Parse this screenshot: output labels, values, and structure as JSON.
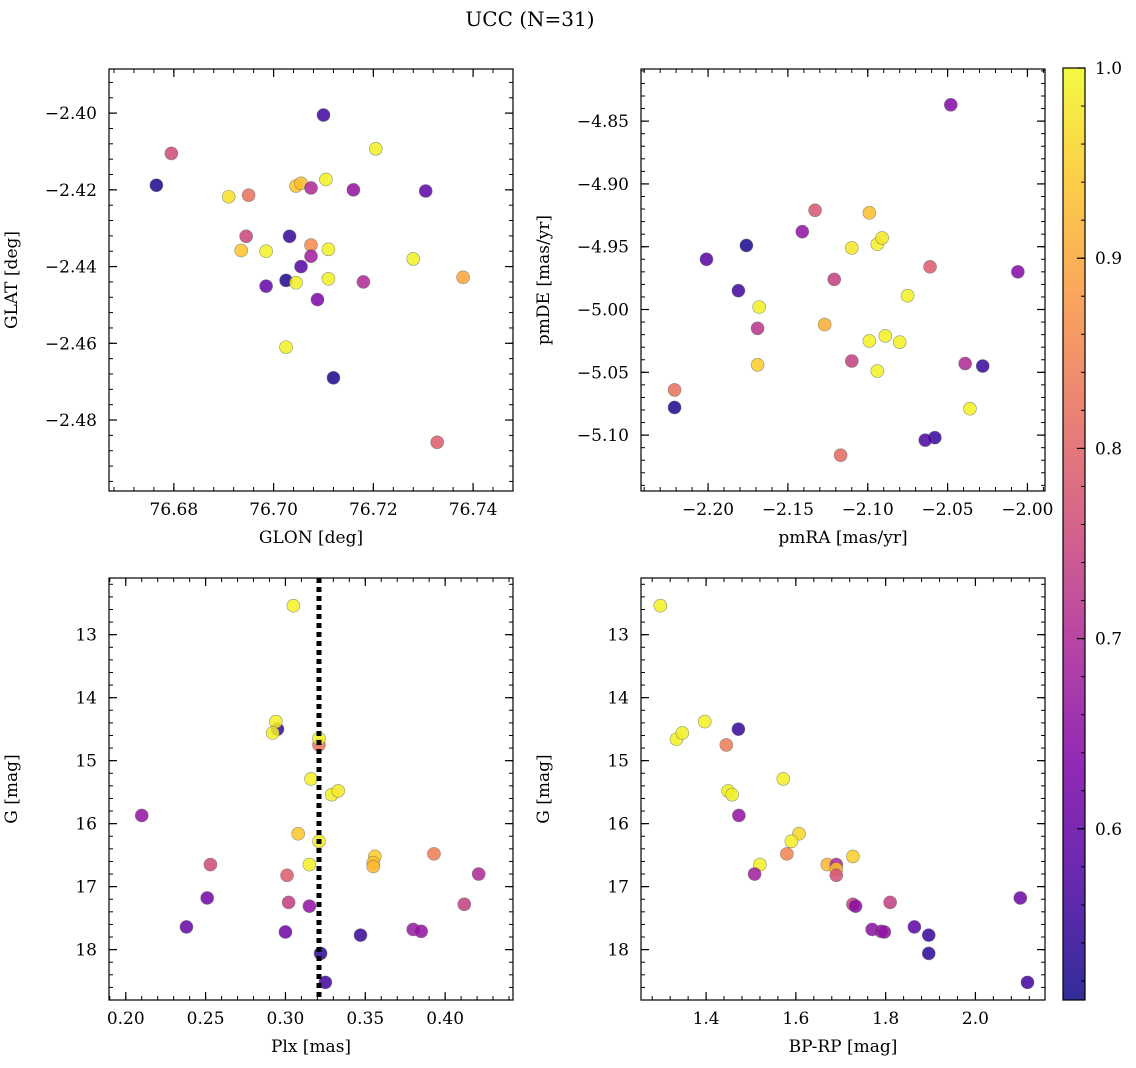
{
  "figure": {
    "suptitle": "UCC (N=31)",
    "colormap": "plasma",
    "colorbar": {
      "min": 0.51,
      "max": 1.0,
      "ticks": [
        0.6,
        0.7,
        0.8,
        0.9,
        1.0
      ],
      "tick_labels": [
        "0.6",
        "0.7",
        "0.8",
        "0.9",
        "1.0"
      ]
    }
  },
  "chart_data": [
    {
      "id": "glon-glat",
      "type": "scatter",
      "xlabel": "GLON [deg]",
      "ylabel": "GLAT [deg]",
      "xlim": [
        76.667,
        76.748
      ],
      "ylim": [
        -2.4985,
        -2.3885
      ],
      "y_inverted": false,
      "xticks": [
        76.68,
        76.7,
        76.72,
        76.74
      ],
      "xtick_labels": [
        "76.68",
        "76.70",
        "76.72",
        "76.74"
      ],
      "yticks": [
        -2.4,
        -2.42,
        -2.44,
        -2.46,
        -2.48
      ],
      "ytick_labels": [
        "−2.40",
        "−2.42",
        "−2.44",
        "−2.46",
        "−2.48"
      ],
      "xminor": 0.004,
      "yminor": 0.004,
      "points": [
        {
          "x": 76.71,
          "y": -2.4005,
          "c": 0.56
        },
        {
          "x": 76.6795,
          "y": -2.4105,
          "c": 0.76
        },
        {
          "x": 76.6765,
          "y": -2.4188,
          "c": 0.52
        },
        {
          "x": 76.691,
          "y": -2.4218,
          "c": 0.97
        },
        {
          "x": 76.695,
          "y": -2.4214,
          "c": 0.82
        },
        {
          "x": 76.7045,
          "y": -2.419,
          "c": 0.94
        },
        {
          "x": 76.7055,
          "y": -2.4183,
          "c": 0.93
        },
        {
          "x": 76.7075,
          "y": -2.4195,
          "c": 0.7
        },
        {
          "x": 76.7105,
          "y": -2.4173,
          "c": 0.99
        },
        {
          "x": 76.716,
          "y": -2.42,
          "c": 0.66
        },
        {
          "x": 76.7205,
          "y": -2.4093,
          "c": 0.99
        },
        {
          "x": 76.7305,
          "y": -2.4203,
          "c": 0.59
        },
        {
          "x": 76.6945,
          "y": -2.4321,
          "c": 0.75
        },
        {
          "x": 76.7032,
          "y": -2.4321,
          "c": 0.55
        },
        {
          "x": 76.6935,
          "y": -2.4358,
          "c": 0.94
        },
        {
          "x": 76.6985,
          "y": -2.436,
          "c": 0.99
        },
        {
          "x": 76.7075,
          "y": -2.4344,
          "c": 0.86
        },
        {
          "x": 76.711,
          "y": -2.4355,
          "c": 0.99
        },
        {
          "x": 76.7075,
          "y": -2.4373,
          "c": 0.68
        },
        {
          "x": 76.7055,
          "y": -2.44,
          "c": 0.58
        },
        {
          "x": 76.728,
          "y": -2.438,
          "c": 0.99
        },
        {
          "x": 76.6985,
          "y": -2.4451,
          "c": 0.6
        },
        {
          "x": 76.7025,
          "y": -2.4436,
          "c": 0.53
        },
        {
          "x": 76.7045,
          "y": -2.4442,
          "c": 0.99
        },
        {
          "x": 76.711,
          "y": -2.4432,
          "c": 0.99
        },
        {
          "x": 76.718,
          "y": -2.444,
          "c": 0.7
        },
        {
          "x": 76.738,
          "y": -2.4428,
          "c": 0.9
        },
        {
          "x": 76.7088,
          "y": -2.4486,
          "c": 0.63
        },
        {
          "x": 76.7025,
          "y": -2.461,
          "c": 0.99
        },
        {
          "x": 76.712,
          "y": -2.469,
          "c": 0.52
        },
        {
          "x": 76.7328,
          "y": -2.4858,
          "c": 0.79
        }
      ]
    },
    {
      "id": "pm",
      "type": "scatter",
      "xlabel": "pmRA [mas/yr]",
      "ylabel": "pmDE [mas/yr]",
      "xlim": [
        -2.242,
        -1.989
      ],
      "ylim": [
        -5.1445,
        -4.8085
      ],
      "y_inverted": false,
      "xticks": [
        -2.2,
        -2.15,
        -2.1,
        -2.05,
        -2.0
      ],
      "xtick_labels": [
        "−2.20",
        "−2.15",
        "−2.10",
        "−2.05",
        "−2.00"
      ],
      "yticks": [
        -4.85,
        -4.9,
        -4.95,
        -5.0,
        -5.05,
        -5.1
      ],
      "ytick_labels": [
        "−4.85",
        "−4.90",
        "−4.95",
        "−5.00",
        "−5.05",
        "−5.10"
      ],
      "xminor": 0.01,
      "yminor": 0.01,
      "points": [
        {
          "x": -2.048,
          "y": -4.837,
          "c": 0.64
        },
        {
          "x": -2.133,
          "y": -4.921,
          "c": 0.78
        },
        {
          "x": -2.099,
          "y": -4.923,
          "c": 0.93
        },
        {
          "x": -2.141,
          "y": -4.938,
          "c": 0.66
        },
        {
          "x": -2.176,
          "y": -4.949,
          "c": 0.52
        },
        {
          "x": -2.11,
          "y": -4.951,
          "c": 0.98
        },
        {
          "x": -2.094,
          "y": -4.948,
          "c": 0.99
        },
        {
          "x": -2.091,
          "y": -4.943,
          "c": 0.98
        },
        {
          "x": -2.201,
          "y": -4.96,
          "c": 0.58
        },
        {
          "x": -2.061,
          "y": -4.966,
          "c": 0.79
        },
        {
          "x": -2.006,
          "y": -4.97,
          "c": 0.64
        },
        {
          "x": -2.121,
          "y": -4.976,
          "c": 0.74
        },
        {
          "x": -2.181,
          "y": -4.985,
          "c": 0.56
        },
        {
          "x": -2.075,
          "y": -4.989,
          "c": 0.99
        },
        {
          "x": -2.168,
          "y": -4.998,
          "c": 0.99
        },
        {
          "x": -2.127,
          "y": -5.012,
          "c": 0.91
        },
        {
          "x": -2.169,
          "y": -5.015,
          "c": 0.72
        },
        {
          "x": -2.089,
          "y": -5.021,
          "c": 0.99
        },
        {
          "x": -2.099,
          "y": -5.025,
          "c": 0.99
        },
        {
          "x": -2.08,
          "y": -5.026,
          "c": 0.99
        },
        {
          "x": -2.11,
          "y": -5.041,
          "c": 0.74
        },
        {
          "x": -2.039,
          "y": -5.043,
          "c": 0.7
        },
        {
          "x": -2.169,
          "y": -5.044,
          "c": 0.95
        },
        {
          "x": -2.028,
          "y": -5.045,
          "c": 0.55
        },
        {
          "x": -2.094,
          "y": -5.049,
          "c": 0.99
        },
        {
          "x": -2.221,
          "y": -5.064,
          "c": 0.82
        },
        {
          "x": -2.221,
          "y": -5.078,
          "c": 0.52
        },
        {
          "x": -2.036,
          "y": -5.079,
          "c": 0.99
        },
        {
          "x": -2.058,
          "y": -5.102,
          "c": 0.55
        },
        {
          "x": -2.064,
          "y": -5.104,
          "c": 0.57
        },
        {
          "x": -2.117,
          "y": -5.116,
          "c": 0.81
        }
      ]
    },
    {
      "id": "plx-g",
      "type": "scatter",
      "xlabel": "Plx [mas]",
      "ylabel": "G [mag]",
      "xlim": [
        0.1895,
        0.4425
      ],
      "ylim": [
        12.1,
        18.8
      ],
      "y_inverted": true,
      "xticks": [
        0.2,
        0.25,
        0.3,
        0.35,
        0.4
      ],
      "xtick_labels": [
        "0.20",
        "0.25",
        "0.30",
        "0.35",
        "0.40"
      ],
      "yticks": [
        13,
        14,
        15,
        16,
        17,
        18
      ],
      "ytick_labels": [
        "13",
        "14",
        "15",
        "16",
        "17",
        "18"
      ],
      "xminor": 0.01,
      "yminor": 0.2,
      "vline": 0.321,
      "points": [
        {
          "x": 0.305,
          "y": 12.54,
          "c": 0.99
        },
        {
          "x": 0.295,
          "y": 14.5,
          "c": 0.55
        },
        {
          "x": 0.294,
          "y": 14.38,
          "c": 0.99
        },
        {
          "x": 0.292,
          "y": 14.56,
          "c": 0.99
        },
        {
          "x": 0.321,
          "y": 14.75,
          "c": 0.83
        },
        {
          "x": 0.321,
          "y": 14.65,
          "c": 0.99
        },
        {
          "x": 0.316,
          "y": 15.29,
          "c": 0.99
        },
        {
          "x": 0.329,
          "y": 15.54,
          "c": 0.99
        },
        {
          "x": 0.333,
          "y": 15.48,
          "c": 0.98
        },
        {
          "x": 0.21,
          "y": 15.87,
          "c": 0.66
        },
        {
          "x": 0.308,
          "y": 16.16,
          "c": 0.94
        },
        {
          "x": 0.321,
          "y": 16.28,
          "c": 0.99
        },
        {
          "x": 0.356,
          "y": 16.52,
          "c": 0.95
        },
        {
          "x": 0.355,
          "y": 16.62,
          "c": 0.94
        },
        {
          "x": 0.355,
          "y": 16.68,
          "c": 0.92
        },
        {
          "x": 0.315,
          "y": 16.65,
          "c": 0.99
        },
        {
          "x": 0.253,
          "y": 16.65,
          "c": 0.76
        },
        {
          "x": 0.393,
          "y": 16.48,
          "c": 0.84
        },
        {
          "x": 0.421,
          "y": 16.8,
          "c": 0.7
        },
        {
          "x": 0.301,
          "y": 16.82,
          "c": 0.79
        },
        {
          "x": 0.251,
          "y": 17.18,
          "c": 0.62
        },
        {
          "x": 0.302,
          "y": 17.25,
          "c": 0.74
        },
        {
          "x": 0.412,
          "y": 17.28,
          "c": 0.74
        },
        {
          "x": 0.315,
          "y": 17.31,
          "c": 0.66
        },
        {
          "x": 0.238,
          "y": 17.64,
          "c": 0.6
        },
        {
          "x": 0.3,
          "y": 17.72,
          "c": 0.61
        },
        {
          "x": 0.38,
          "y": 17.68,
          "c": 0.67
        },
        {
          "x": 0.385,
          "y": 17.71,
          "c": 0.66
        },
        {
          "x": 0.347,
          "y": 17.77,
          "c": 0.55
        },
        {
          "x": 0.322,
          "y": 18.06,
          "c": 0.54
        },
        {
          "x": 0.325,
          "y": 18.52,
          "c": 0.56
        }
      ]
    },
    {
      "id": "cmd",
      "type": "scatter",
      "xlabel": "BP-RP [mag]",
      "ylabel": "G [mag]",
      "xlim": [
        1.255,
        2.155
      ],
      "ylim": [
        12.1,
        18.8
      ],
      "y_inverted": true,
      "xticks": [
        1.4,
        1.6,
        1.8,
        2.0
      ],
      "xtick_labels": [
        "1.4",
        "1.6",
        "1.8",
        "2.0"
      ],
      "yticks": [
        13,
        14,
        15,
        16,
        17,
        18
      ],
      "ytick_labels": [
        "13",
        "14",
        "15",
        "16",
        "17",
        "18"
      ],
      "xminor": 0.04,
      "yminor": 0.2,
      "points": [
        {
          "x": 1.298,
          "y": 12.54,
          "c": 0.99
        },
        {
          "x": 1.334,
          "y": 14.66,
          "c": 0.99
        },
        {
          "x": 1.347,
          "y": 14.56,
          "c": 0.99
        },
        {
          "x": 1.397,
          "y": 14.38,
          "c": 0.99
        },
        {
          "x": 1.472,
          "y": 14.5,
          "c": 0.55
        },
        {
          "x": 1.445,
          "y": 14.75,
          "c": 0.84
        },
        {
          "x": 1.572,
          "y": 15.29,
          "c": 0.99
        },
        {
          "x": 1.449,
          "y": 15.48,
          "c": 0.99
        },
        {
          "x": 1.458,
          "y": 15.54,
          "c": 0.99
        },
        {
          "x": 1.473,
          "y": 15.87,
          "c": 0.66
        },
        {
          "x": 1.607,
          "y": 16.16,
          "c": 0.96
        },
        {
          "x": 1.59,
          "y": 16.28,
          "c": 0.99
        },
        {
          "x": 1.58,
          "y": 16.48,
          "c": 0.85
        },
        {
          "x": 1.727,
          "y": 16.52,
          "c": 0.95
        },
        {
          "x": 1.52,
          "y": 16.65,
          "c": 0.99
        },
        {
          "x": 1.67,
          "y": 16.65,
          "c": 0.92
        },
        {
          "x": 1.69,
          "y": 16.65,
          "c": 0.7
        },
        {
          "x": 1.69,
          "y": 16.72,
          "c": 0.93
        },
        {
          "x": 1.69,
          "y": 16.82,
          "c": 0.77
        },
        {
          "x": 1.508,
          "y": 16.8,
          "c": 0.68
        },
        {
          "x": 2.1,
          "y": 17.18,
          "c": 0.61
        },
        {
          "x": 1.727,
          "y": 17.28,
          "c": 0.75
        },
        {
          "x": 1.733,
          "y": 17.31,
          "c": 0.65
        },
        {
          "x": 1.81,
          "y": 17.25,
          "c": 0.74
        },
        {
          "x": 1.77,
          "y": 17.68,
          "c": 0.65
        },
        {
          "x": 1.79,
          "y": 17.71,
          "c": 0.67
        },
        {
          "x": 1.797,
          "y": 17.72,
          "c": 0.66
        },
        {
          "x": 1.864,
          "y": 17.64,
          "c": 0.59
        },
        {
          "x": 1.896,
          "y": 17.77,
          "c": 0.55
        },
        {
          "x": 1.896,
          "y": 18.06,
          "c": 0.54
        },
        {
          "x": 2.116,
          "y": 18.52,
          "c": 0.56
        }
      ]
    }
  ]
}
